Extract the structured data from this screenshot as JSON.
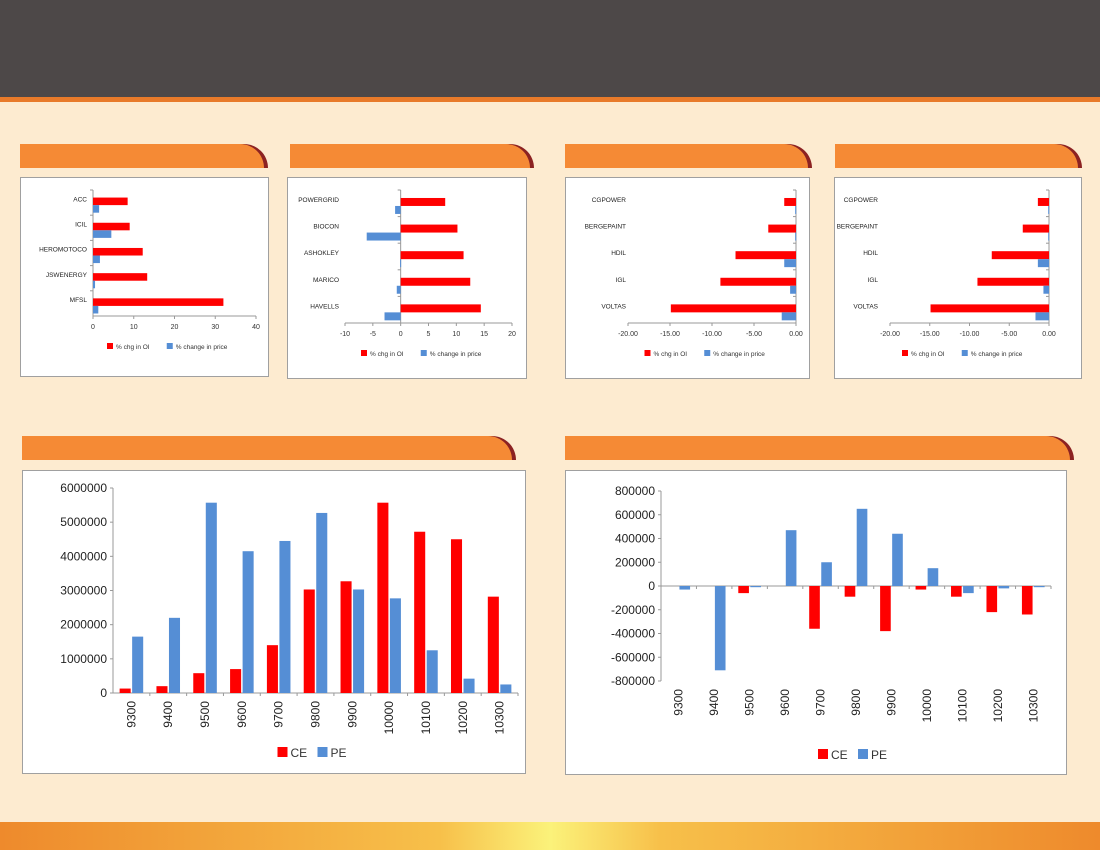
{
  "colors": {
    "oi": "#ff0000",
    "price": "#558ed5",
    "ce": "#ff0000",
    "pe": "#558ed5"
  },
  "chart_data": [
    {
      "type": "bar",
      "orientation": "horizontal",
      "categories": [
        "ACC",
        "ICIL",
        "HEROMOTOCO",
        "JSWENERGY",
        "MFSL"
      ],
      "series": [
        {
          "name": "% chg in OI",
          "values": [
            8.5,
            9.0,
            12.2,
            13.3,
            32.0
          ]
        },
        {
          "name": "% change in price",
          "values": [
            1.5,
            4.5,
            1.7,
            0.5,
            1.3
          ]
        }
      ],
      "xlim": [
        0,
        40
      ],
      "ticks": [
        "0",
        "10",
        "20",
        "30",
        "40"
      ],
      "legend": "bottom"
    },
    {
      "type": "bar",
      "orientation": "horizontal",
      "categories": [
        "POWERGRID",
        "BIOCON",
        "ASHOKLEY",
        "MARICO",
        "HAVELLS"
      ],
      "series": [
        {
          "name": "% chg in OI",
          "values": [
            8.0,
            10.2,
            11.3,
            12.5,
            14.4
          ]
        },
        {
          "name": "% change in price",
          "values": [
            -1.0,
            -6.1,
            -0.1,
            -0.7,
            -2.9
          ]
        }
      ],
      "xlim": [
        -10,
        20
      ],
      "ticks": [
        "-10",
        "-5",
        "0",
        "5",
        "10",
        "15",
        "20"
      ],
      "legend": "bottom"
    },
    {
      "type": "bar",
      "orientation": "horizontal",
      "categories": [
        "CGPOWER",
        "BERGEPAINT",
        "HDIL",
        "IGL",
        "VOLTAS"
      ],
      "series": [
        {
          "name": "% chg in OI",
          "values": [
            -1.4,
            -3.3,
            -7.2,
            -9.0,
            -14.9
          ]
        },
        {
          "name": "% change in price",
          "values": [
            -0.1,
            -0.1,
            -1.4,
            -0.7,
            -1.7
          ]
        }
      ],
      "xlim": [
        -20,
        0
      ],
      "ticks": [
        "-20.00",
        "-15.00",
        "-10.00",
        "-5.00",
        "0.00"
      ],
      "legend": "bottom"
    },
    {
      "type": "bar",
      "orientation": "horizontal",
      "categories": [
        "CGPOWER",
        "BERGEPAINT",
        "HDIL",
        "IGL",
        "VOLTAS"
      ],
      "series": [
        {
          "name": "% chg in OI",
          "values": [
            -1.4,
            -3.3,
            -7.2,
            -9.0,
            -14.9
          ]
        },
        {
          "name": "% change in price",
          "values": [
            -0.1,
            -0.1,
            -1.4,
            -0.7,
            -1.7
          ]
        }
      ],
      "xlim": [
        -20,
        0
      ],
      "ticks": [
        "-20.00",
        "-15.00",
        "-10.00",
        "-5.00",
        "0.00"
      ],
      "legend": "bottom"
    },
    {
      "type": "bar",
      "orientation": "vertical",
      "categories": [
        "9300",
        "9400",
        "9500",
        "9600",
        "9700",
        "9800",
        "9900",
        "10000",
        "10100",
        "10200",
        "10300"
      ],
      "series": [
        {
          "name": "CE",
          "values": [
            130000,
            200000,
            580000,
            700000,
            1400000,
            3030000,
            3270000,
            5570000,
            4720000,
            4500000,
            2820000
          ]
        },
        {
          "name": "PE",
          "values": [
            1650000,
            2200000,
            5570000,
            4150000,
            4450000,
            5270000,
            3030000,
            2770000,
            1250000,
            420000,
            250000
          ]
        }
      ],
      "ylim": [
        0,
        6000000
      ],
      "ticks": [
        "0",
        "1000000",
        "2000000",
        "3000000",
        "4000000",
        "5000000",
        "6000000"
      ],
      "legend": "bottom"
    },
    {
      "type": "bar",
      "orientation": "vertical",
      "categories": [
        "9300",
        "9400",
        "9500",
        "9600",
        "9700",
        "9800",
        "9900",
        "10000",
        "10100",
        "10200",
        "10300"
      ],
      "series": [
        {
          "name": "CE",
          "values": [
            0,
            0,
            -60000,
            0,
            -360000,
            -90000,
            -380000,
            -30000,
            -90000,
            -220000,
            -240000
          ]
        },
        {
          "name": "PE",
          "values": [
            -30000,
            -710000,
            -10000,
            470000,
            200000,
            650000,
            440000,
            150000,
            -60000,
            -20000,
            -10000
          ]
        }
      ],
      "ylim": [
        -800000,
        800000
      ],
      "ticks": [
        "-800000",
        "-600000",
        "-400000",
        "-200000",
        "0",
        "200000",
        "400000",
        "600000",
        "800000"
      ],
      "legend": "bottom"
    }
  ]
}
